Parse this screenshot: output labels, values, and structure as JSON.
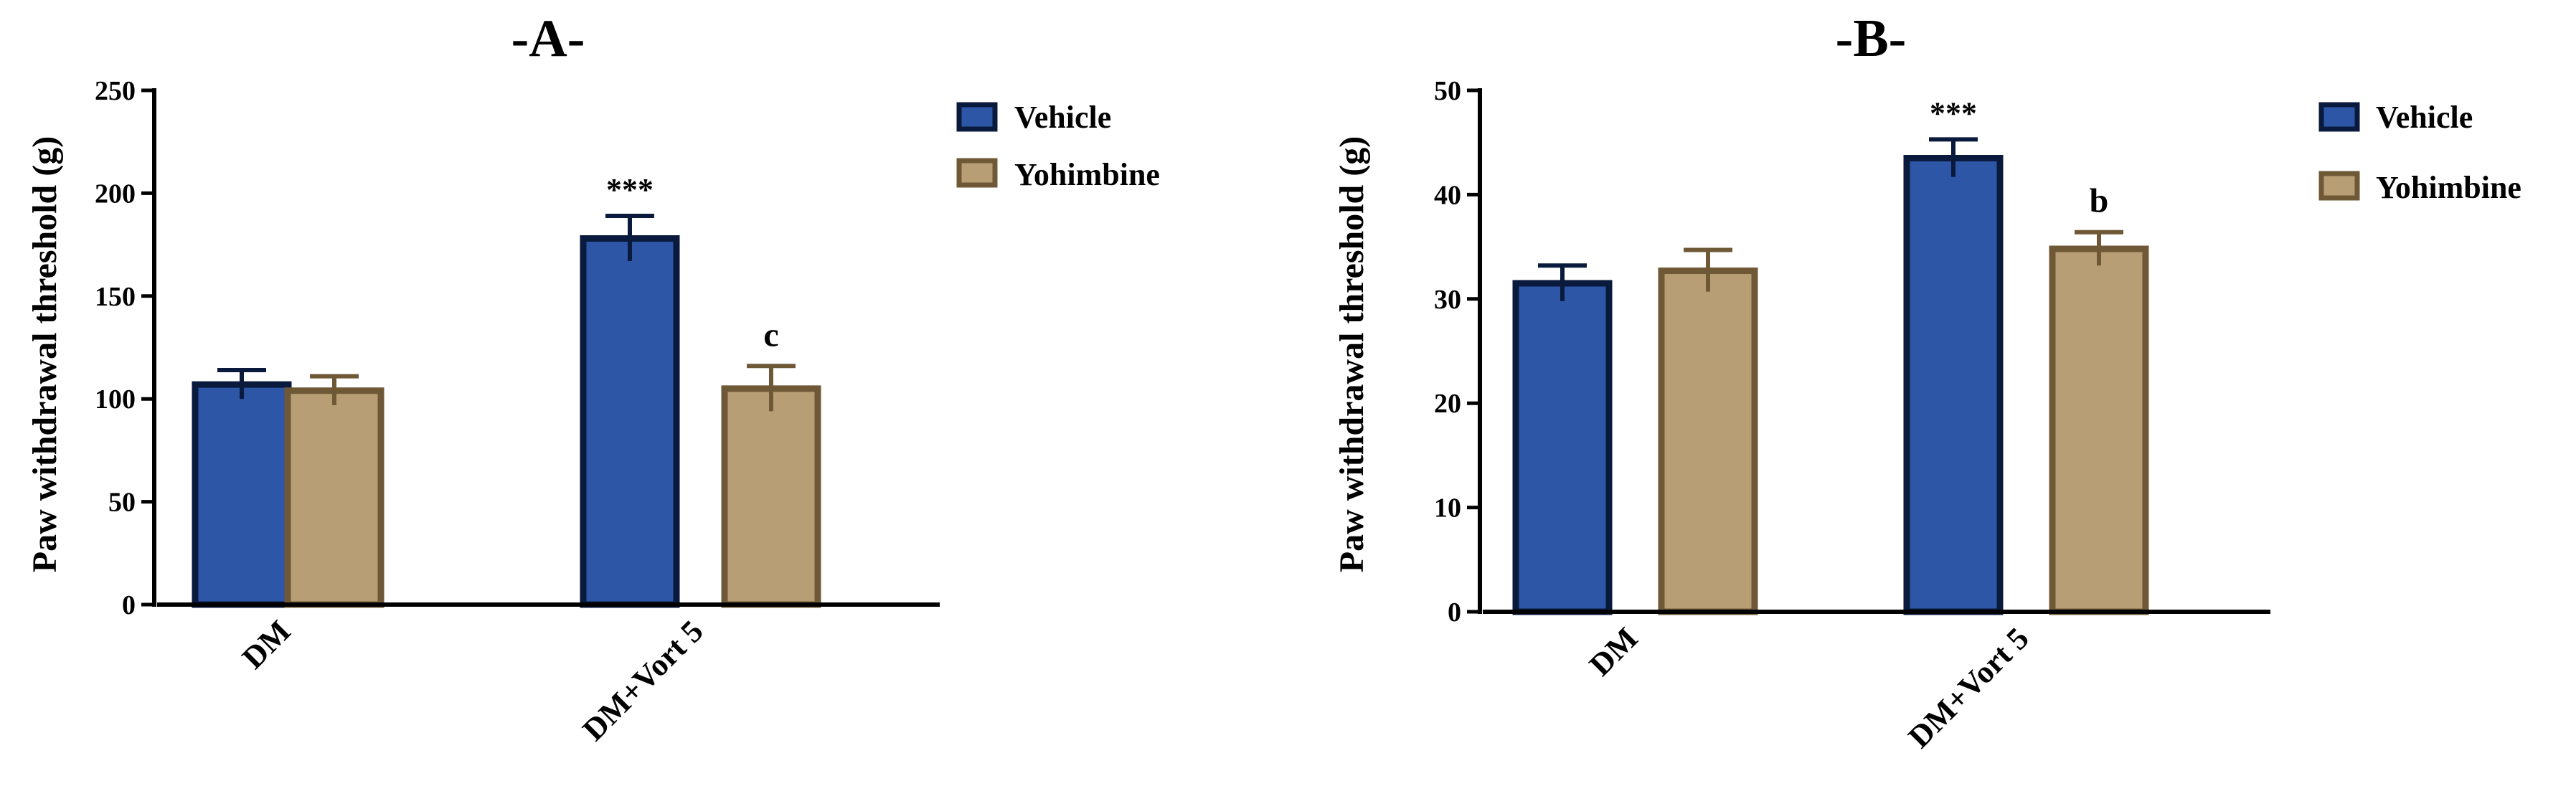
{
  "chart_data": [
    {
      "type": "bar",
      "title": "-A-",
      "xlabel": "",
      "ylabel": "Paw withdrawal threshold (g)",
      "ylim": [
        0,
        250
      ],
      "yticks": [
        0,
        50,
        100,
        150,
        200,
        250
      ],
      "categories": [
        "DM",
        "DM+Vort 5"
      ],
      "series": [
        {
          "name": "Vehicle",
          "values": [
            107,
            178
          ],
          "errors": [
            7,
            11
          ],
          "color": "#2e56a6",
          "edge": "#0a1a3c"
        },
        {
          "name": "Yohimbine",
          "values": [
            104,
            105
          ],
          "errors": [
            7,
            11
          ],
          "color": "#b89e74",
          "edge": "#6e5836"
        }
      ],
      "annotations": [
        {
          "category": 1,
          "series": 0,
          "text": "***"
        },
        {
          "category": 1,
          "series": 1,
          "text": "c"
        }
      ],
      "legend": "top-right"
    },
    {
      "type": "bar",
      "title": "-B-",
      "xlabel": "",
      "ylabel": "Paw withdrawal threshold (g)",
      "ylim": [
        0,
        50
      ],
      "yticks": [
        0,
        10,
        20,
        30,
        40,
        50
      ],
      "categories": [
        "DM",
        "DM+Vort 5"
      ],
      "series": [
        {
          "name": "Vehicle",
          "values": [
            31.5,
            43.5
          ],
          "errors": [
            1.7,
            1.8
          ],
          "color": "#2e56a6",
          "edge": "#0a1a3c"
        },
        {
          "name": "Yohimbine",
          "values": [
            32.7,
            34.8
          ],
          "errors": [
            2.0,
            1.6
          ],
          "color": "#b89e74",
          "edge": "#6e5836"
        }
      ],
      "annotations": [
        {
          "category": 1,
          "series": 0,
          "text": "***"
        },
        {
          "category": 1,
          "series": 1,
          "text": "b"
        }
      ],
      "legend": "top-right"
    }
  ]
}
